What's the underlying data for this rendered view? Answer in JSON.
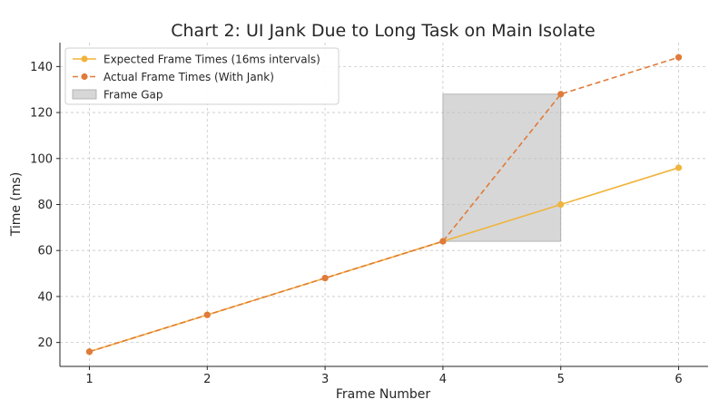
{
  "chart_data": {
    "type": "line",
    "title": "Chart 2: UI Jank Due to Long Task on Main Isolate",
    "xlabel": "Frame Number",
    "ylabel": "Time (ms)",
    "x": [
      1,
      2,
      3,
      4,
      5,
      6
    ],
    "x_ticks": [
      "1",
      "2",
      "3",
      "4",
      "5",
      "6"
    ],
    "y_ticks": [
      "20",
      "40",
      "60",
      "80",
      "100",
      "120",
      "140"
    ],
    "xlim": [
      0.75,
      6.25
    ],
    "ylim": [
      9.6,
      150.4
    ],
    "grid": true,
    "legend_position": "top-left",
    "series": [
      {
        "name": "Expected Frame Times (16ms intervals)",
        "values": [
          16,
          32,
          48,
          64,
          80,
          96
        ],
        "color": "#f0b43c",
        "line_style": "solid",
        "marker": "circle"
      },
      {
        "name": "Actual Frame Times (With Jank)",
        "values": [
          16,
          32,
          48,
          64,
          128,
          144
        ],
        "color": "#e07b39",
        "line_style": "dashed",
        "marker": "circle"
      }
    ],
    "shaded_region": {
      "name": "Frame Gap",
      "x_range": [
        4,
        5
      ],
      "y_range": [
        64,
        128
      ],
      "color": "#bfbfbf"
    }
  }
}
